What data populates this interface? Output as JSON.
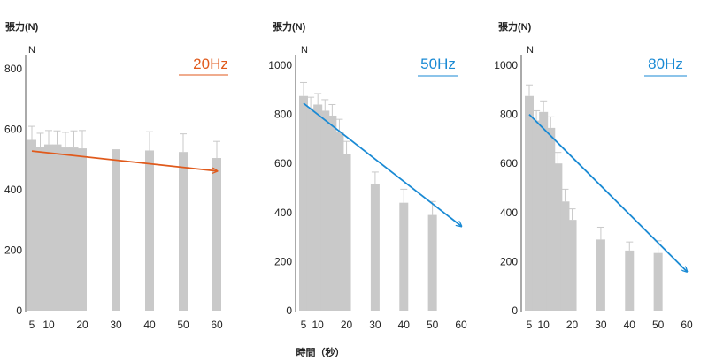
{
  "figure": {
    "xlabel": "時間（秒）"
  },
  "chart_data": [
    {
      "type": "bar",
      "title": "20Hz",
      "title_color": "#e05a1c",
      "ylabel": "張力(N)",
      "yunit": "N",
      "ylim": [
        0,
        800
      ],
      "yticks": [
        0,
        200,
        400,
        600,
        800
      ],
      "x": [
        5,
        7.5,
        10,
        12.5,
        15,
        17.5,
        20,
        25,
        30,
        40,
        50,
        60
      ],
      "xtick_labels": [
        "5",
        "10",
        "20",
        "30",
        "40",
        "50",
        "60"
      ],
      "values": [
        565,
        543,
        550,
        550,
        540,
        540,
        537,
        0,
        534,
        530,
        525,
        505
      ],
      "error_upper": [
        610,
        587,
        596,
        595,
        590,
        595,
        596,
        0,
        0,
        592,
        585,
        560
      ],
      "trend": {
        "from": [
          5,
          528
        ],
        "to": [
          60,
          462
        ],
        "color": "#e05a1c"
      },
      "bar_color": "#c9c9c9",
      "grid": false
    },
    {
      "type": "bar",
      "title": "50Hz",
      "title_color": "#1a8ad4",
      "ylabel": "張力(N)",
      "yunit": "N",
      "ylim": [
        0,
        1000
      ],
      "yticks": [
        0,
        200,
        400,
        600,
        800,
        1000
      ],
      "x": [
        5,
        7.5,
        10,
        12.5,
        15,
        17.5,
        20,
        25,
        30,
        40,
        50,
        60
      ],
      "xtick_labels": [
        "5",
        "10",
        "20",
        "30",
        "40",
        "50",
        "60"
      ],
      "values": [
        875,
        825,
        840,
        815,
        795,
        730,
        640,
        0,
        515,
        440,
        390,
        0
      ],
      "error_upper": [
        930,
        870,
        885,
        860,
        840,
        780,
        690,
        0,
        565,
        495,
        445,
        0
      ],
      "trend": {
        "from": [
          5,
          845
        ],
        "to": [
          60,
          345
        ],
        "color": "#1a8ad4"
      },
      "bar_color": "#c9c9c9",
      "grid": false
    },
    {
      "type": "bar",
      "title": "80Hz",
      "title_color": "#1a8ad4",
      "ylabel": "張力(N)",
      "yunit": "N",
      "ylim": [
        0,
        1000
      ],
      "yticks": [
        0,
        200,
        400,
        600,
        800,
        1000
      ],
      "x": [
        5,
        7.5,
        10,
        12.5,
        15,
        17.5,
        20,
        25,
        30,
        40,
        50,
        60
      ],
      "xtick_labels": [
        "5",
        "10",
        "20",
        "30",
        "40",
        "50",
        "60"
      ],
      "values": [
        875,
        775,
        810,
        745,
        600,
        445,
        370,
        0,
        290,
        245,
        235,
        0
      ],
      "error_upper": [
        920,
        815,
        855,
        790,
        645,
        495,
        415,
        0,
        340,
        280,
        285,
        0
      ],
      "trend": {
        "from": [
          5,
          800
        ],
        "to": [
          60,
          160
        ],
        "color": "#1a8ad4"
      },
      "bar_color": "#c9c9c9",
      "grid": false
    }
  ]
}
